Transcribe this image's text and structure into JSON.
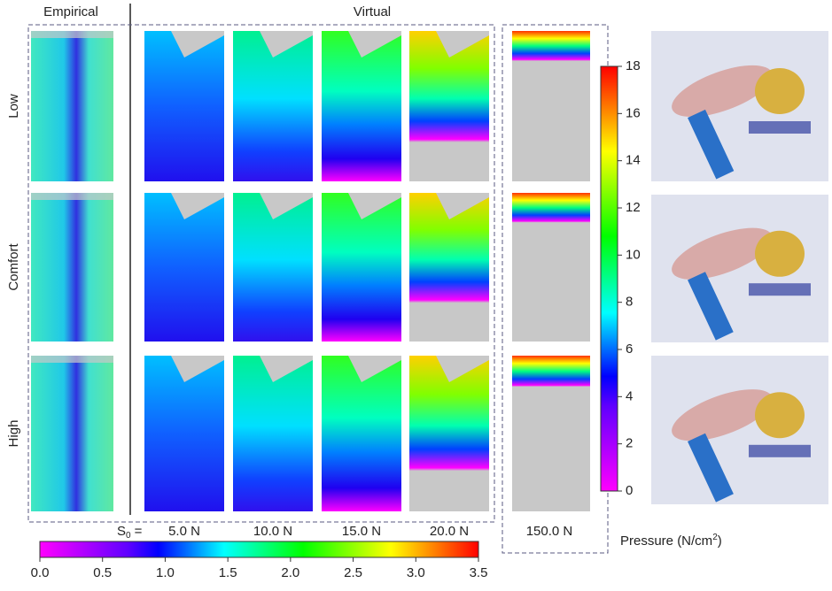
{
  "column_headers": {
    "empirical": "Empirical",
    "virtual": "Virtual"
  },
  "row_labels": [
    "Low",
    "Comfort",
    "High"
  ],
  "s0": {
    "symbol": "S",
    "subscript": "0",
    "equals": "="
  },
  "stiffness_labels": [
    "5.0 N",
    "10.0 N",
    "15.0 N",
    "20.0 N",
    "150.0 N"
  ],
  "horizontal_colorbar": {
    "lim": [
      0,
      3.5
    ],
    "ticks": [
      {
        "value": 0,
        "label": "0.0"
      },
      0.5,
      {
        "value": 1,
        "label": "1.0"
      },
      1.5,
      {
        "value": 2,
        "label": "2.0"
      },
      2.5,
      {
        "value": 3,
        "label": "3.0"
      },
      3.5
    ]
  },
  "vertical_colorbar": {
    "lim": [
      0,
      18
    ],
    "ticks": [
      0,
      2,
      4,
      6,
      8,
      10,
      12,
      14,
      16,
      18
    ],
    "label": {
      "text": "Pressure (N/cm",
      "superscript": "2",
      "close": ")"
    }
  }
}
